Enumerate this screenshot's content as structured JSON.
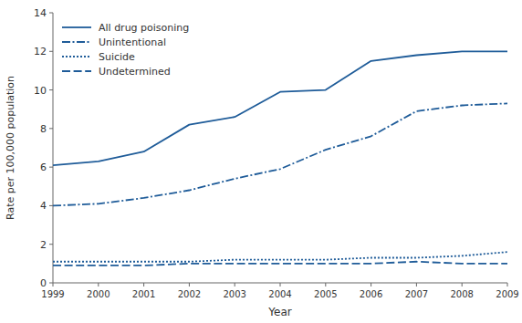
{
  "chart_data": {
    "type": "line",
    "x": [
      1999,
      2000,
      2001,
      2002,
      2003,
      2004,
      2005,
      2006,
      2007,
      2008,
      2009
    ],
    "series": [
      {
        "name": "All drug poisoning",
        "color": "#1f5c99",
        "line_style": "solid",
        "values": [
          6.1,
          6.3,
          6.8,
          8.2,
          8.6,
          9.9,
          10.0,
          11.5,
          11.8,
          12.0,
          12.0
        ]
      },
      {
        "name": "Unintentional",
        "color": "#1f5c99",
        "line_style": "dashdot",
        "values": [
          4.0,
          4.1,
          4.4,
          4.8,
          5.4,
          5.9,
          6.9,
          7.6,
          8.9,
          9.2,
          9.3
        ]
      },
      {
        "name": "Suicide",
        "color": "#1f5c99",
        "line_style": "dotted",
        "values": [
          1.1,
          1.1,
          1.1,
          1.1,
          1.2,
          1.2,
          1.2,
          1.3,
          1.3,
          1.4,
          1.6
        ]
      },
      {
        "name": "Undetermined",
        "color": "#1f5c99",
        "line_style": "dashed",
        "values": [
          0.9,
          0.9,
          0.9,
          1.0,
          1.0,
          1.0,
          1.0,
          1.0,
          1.1,
          1.0,
          1.0
        ]
      }
    ],
    "xlim": [
      1999,
      2009
    ],
    "xticks": [
      1999,
      2000,
      2001,
      2002,
      2003,
      2004,
      2005,
      2006,
      2007,
      2008,
      2009
    ],
    "ylim": [
      0,
      14
    ],
    "yticks": [
      0,
      2,
      4,
      6,
      8,
      10,
      12,
      14
    ],
    "xlabel": "Year",
    "ylabel": "Rate per 100,000 population",
    "legend": "upper left",
    "grid": false
  }
}
